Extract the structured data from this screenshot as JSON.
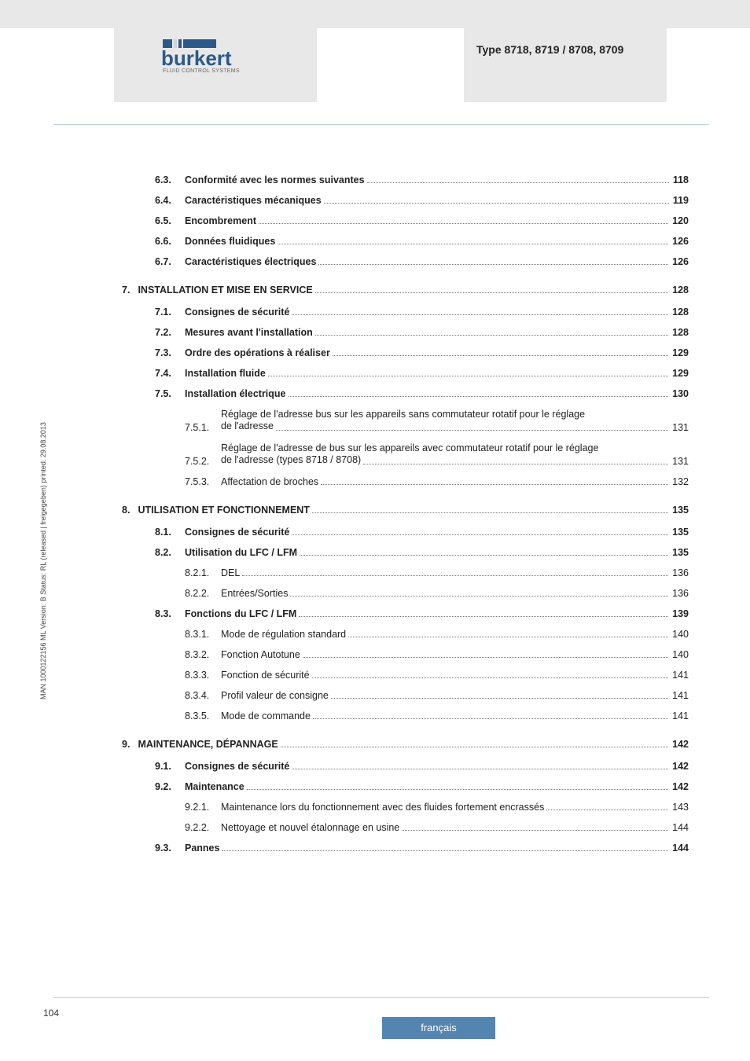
{
  "header": {
    "type_label": "Type 8718, 8719 / 8708, 8709",
    "logo_main": "burkert",
    "logo_sub": "FLUID CONTROL SYSTEMS",
    "logo_bar_colors": [
      "#2b5a8a",
      "#cfd4d8",
      "#2b5a8a",
      "#2b5a8a"
    ],
    "logo_bar_widths": [
      12,
      4,
      4,
      42
    ]
  },
  "sidebar_text": "MAN 1000122156 ML Version: B Status: RL (released | freigegeben) printed: 29.08.2013",
  "page_number": "104",
  "footer_label": "français",
  "toc": [
    {
      "num": "6.3.",
      "title": "Conformité avec les normes suivantes",
      "page": "118",
      "level": 2,
      "bold": true
    },
    {
      "num": "6.4.",
      "title": "Caractéristiques mécaniques",
      "page": "119",
      "level": 2,
      "bold": true
    },
    {
      "num": "6.5.",
      "title": "Encombrement",
      "page": "120",
      "level": 2,
      "bold": true
    },
    {
      "num": "6.6.",
      "title": "Données fluidiques",
      "page": "126",
      "level": 2,
      "bold": true
    },
    {
      "num": "6.7.",
      "title": "Caractéristiques électriques",
      "page": "126",
      "level": 2,
      "bold": true
    },
    {
      "num": "7.",
      "title": "INSTALLATION ET MISE EN SERVICE",
      "page": "128",
      "level": 1,
      "bold": true,
      "section": true
    },
    {
      "num": "7.1.",
      "title": "Consignes de sécurité",
      "page": "128",
      "level": 2,
      "bold": true
    },
    {
      "num": "7.2.",
      "title": "Mesures avant l'installation",
      "page": "128",
      "level": 2,
      "bold": true
    },
    {
      "num": "7.3.",
      "title": "Ordre des opérations à réaliser",
      "page": "129",
      "level": 2,
      "bold": true
    },
    {
      "num": "7.4.",
      "title": "Installation fluide",
      "page": "129",
      "level": 2,
      "bold": true
    },
    {
      "num": "7.5.",
      "title": "Installation électrique",
      "page": "130",
      "level": 2,
      "bold": true
    },
    {
      "num": "7.5.1.",
      "title_l1": "Réglage de l'adresse bus sur les appareils sans commutateur rotatif pour le réglage",
      "title_l2": "de l'adresse",
      "page": "131",
      "level": 3,
      "bold": false,
      "multiline": true
    },
    {
      "num": "7.5.2.",
      "title_l1": "Réglage de l'adresse de bus sur les appareils avec commutateur rotatif pour le réglage",
      "title_l2": "de l'adresse (types 8718 / 8708)",
      "page": "131",
      "level": 3,
      "bold": false,
      "multiline": true
    },
    {
      "num": "7.5.3.",
      "title": "Affectation de broches",
      "page": "132",
      "level": 3,
      "bold": false
    },
    {
      "num": "8.",
      "title": "UTILISATION ET FONCTIONNEMENT",
      "page": "135",
      "level": 1,
      "bold": true,
      "section": true
    },
    {
      "num": "8.1.",
      "title": "Consignes de sécurité",
      "page": "135",
      "level": 2,
      "bold": true
    },
    {
      "num": "8.2.",
      "title": "Utilisation du LFC / LFM",
      "page": "135",
      "level": 2,
      "bold": true
    },
    {
      "num": "8.2.1.",
      "title": "DEL",
      "page": "136",
      "level": 3,
      "bold": false
    },
    {
      "num": "8.2.2.",
      "title": "Entrées/Sorties",
      "page": "136",
      "level": 3,
      "bold": false
    },
    {
      "num": "8.3.",
      "title": "Fonctions du LFC / LFM",
      "page": "139",
      "level": 2,
      "bold": true
    },
    {
      "num": "8.3.1.",
      "title": "Mode de régulation standard",
      "page": "140",
      "level": 3,
      "bold": false
    },
    {
      "num": "8.3.2.",
      "title": "Fonction Autotune",
      "page": "140",
      "level": 3,
      "bold": false
    },
    {
      "num": "8.3.3.",
      "title": "Fonction de sécurité",
      "page": "141",
      "level": 3,
      "bold": false
    },
    {
      "num": "8.3.4.",
      "title": "Profil valeur de consigne",
      "page": "141",
      "level": 3,
      "bold": false
    },
    {
      "num": "8.3.5.",
      "title": "Mode de commande",
      "page": "141",
      "level": 3,
      "bold": false
    },
    {
      "num": "9.",
      "title": "MAINTENANCE, DÉPANNAGE",
      "page": "142",
      "level": 1,
      "bold": true,
      "section": true
    },
    {
      "num": "9.1.",
      "title": "Consignes de sécurité",
      "page": "142",
      "level": 2,
      "bold": true
    },
    {
      "num": "9.2.",
      "title": "Maintenance",
      "page": "142",
      "level": 2,
      "bold": true
    },
    {
      "num": "9.2.1.",
      "title": "Maintenance lors du fonctionnement avec des fluides fortement encrassés",
      "page": "143",
      "level": 3,
      "bold": false
    },
    {
      "num": "9.2.2.",
      "title": "Nettoyage et nouvel étalonnage en usine",
      "page": "144",
      "level": 3,
      "bold": false
    },
    {
      "num": "9.3.",
      "title": "Pannes",
      "page": "144",
      "level": 2,
      "bold": true
    }
  ]
}
